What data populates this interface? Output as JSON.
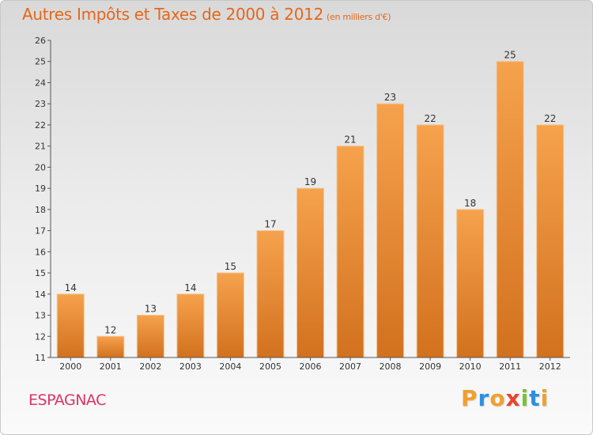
{
  "header": {
    "title": "Autres Impôts et Taxes de 2000 à 2012",
    "subtitle": "(en milliers d'€)"
  },
  "footer": {
    "commune": "ESPAGNAC",
    "logo_text": "Proxiti",
    "logo_letters": [
      {
        "ch": "P",
        "color": "#f0a030"
      },
      {
        "ch": "r",
        "color": "#2f8ee0"
      },
      {
        "ch": "o",
        "color": "#f0a030"
      },
      {
        "ch": "x",
        "color": "#e8432e"
      },
      {
        "ch": "i",
        "color": "#7cbf3a"
      },
      {
        "ch": "t",
        "color": "#2f8ee0"
      },
      {
        "ch": "i",
        "color": "#f0a030"
      }
    ]
  },
  "colors": {
    "title": "#e5671a",
    "commune": "#dd3366",
    "bar_light": "#f6a24d",
    "bar_dark": "#d2711e",
    "axis": "#555555"
  },
  "chart_data": {
    "type": "bar",
    "title": "Autres Impôts et Taxes de 2000 à 2012",
    "subtitle": "(en milliers d'€)",
    "categories": [
      "2000",
      "2001",
      "2002",
      "2003",
      "2004",
      "2005",
      "2006",
      "2007",
      "2008",
      "2009",
      "2010",
      "2011",
      "2012"
    ],
    "values": [
      14,
      12,
      13,
      14,
      15,
      17,
      19,
      21,
      23,
      22,
      18,
      25,
      22
    ],
    "data_labels": [
      "14",
      "12",
      "13",
      "14",
      "15",
      "17",
      "19",
      "21",
      "23",
      "22",
      "18",
      "25",
      "22"
    ],
    "ylim": [
      11,
      26
    ],
    "yticks": [
      "11",
      "12",
      "13",
      "14",
      "15",
      "16",
      "17",
      "18",
      "19",
      "20",
      "21",
      "22",
      "23",
      "24",
      "25",
      "26"
    ],
    "grid": false,
    "legend": "none"
  }
}
